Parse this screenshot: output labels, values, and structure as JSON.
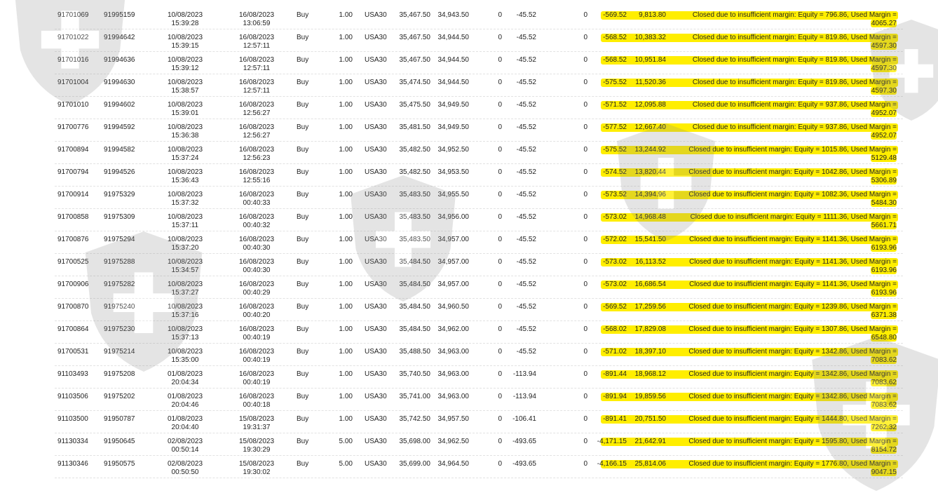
{
  "colors": {
    "highlight": "#ffee00",
    "text": "#222222",
    "watermark": "#9a9a9a"
  },
  "watermark_icon": "shield-cross-icon",
  "comment_prefix": "Closed due to insufficient margin: Equity = ",
  "rows": [
    {
      "ticket": "91701069",
      "order": "91995159",
      "open_date": "10/08/2023",
      "open_time": "15:39:28",
      "close_date": "16/08/2023",
      "close_time": "13:06:59",
      "type": "Buy",
      "lots": "1.00",
      "symbol": "USA30",
      "open_price": "35,467.50",
      "close_price": "34,943.50",
      "swap": "0",
      "commission": "-45.52",
      "taxes": "0",
      "profit": "-569.52",
      "balance": "9,813.80",
      "comment_line1": "Closed due to insufficient margin: Equity = 796.86, Used Margin =",
      "comment_line2": "4065.27"
    },
    {
      "ticket": "91701022",
      "order": "91994642",
      "open_date": "10/08/2023",
      "open_time": "15:39:15",
      "close_date": "16/08/2023",
      "close_time": "12:57:11",
      "type": "Buy",
      "lots": "1.00",
      "symbol": "USA30",
      "open_price": "35,467.50",
      "close_price": "34,944.50",
      "swap": "0",
      "commission": "-45.52",
      "taxes": "0",
      "profit": "-568.52",
      "balance": "10,383.32",
      "comment_line1": "Closed due to insufficient margin: Equity = 819.86, Used Margin =",
      "comment_line2": "4597.30"
    },
    {
      "ticket": "91701016",
      "order": "91994636",
      "open_date": "10/08/2023",
      "open_time": "15:39:12",
      "close_date": "16/08/2023",
      "close_time": "12:57:11",
      "type": "Buy",
      "lots": "1.00",
      "symbol": "USA30",
      "open_price": "35,467.50",
      "close_price": "34,944.50",
      "swap": "0",
      "commission": "-45.52",
      "taxes": "0",
      "profit": "-568.52",
      "balance": "10,951.84",
      "comment_line1": "Closed due to insufficient margin: Equity = 819.86, Used Margin =",
      "comment_line2": "4597.30"
    },
    {
      "ticket": "91701004",
      "order": "91994630",
      "open_date": "10/08/2023",
      "open_time": "15:38:57",
      "close_date": "16/08/2023",
      "close_time": "12:57:11",
      "type": "Buy",
      "lots": "1.00",
      "symbol": "USA30",
      "open_price": "35,474.50",
      "close_price": "34,944.50",
      "swap": "0",
      "commission": "-45.52",
      "taxes": "0",
      "profit": "-575.52",
      "balance": "11,520.36",
      "comment_line1": "Closed due to insufficient margin: Equity = 819.86, Used Margin =",
      "comment_line2": "4597.30"
    },
    {
      "ticket": "91701010",
      "order": "91994602",
      "open_date": "10/08/2023",
      "open_time": "15:39:01",
      "close_date": "16/08/2023",
      "close_time": "12:56:27",
      "type": "Buy",
      "lots": "1.00",
      "symbol": "USA30",
      "open_price": "35,475.50",
      "close_price": "34,949.50",
      "swap": "0",
      "commission": "-45.52",
      "taxes": "0",
      "profit": "-571.52",
      "balance": "12,095.88",
      "comment_line1": "Closed due to insufficient margin: Equity = 937.86, Used Margin =",
      "comment_line2": "4952.07"
    },
    {
      "ticket": "91700776",
      "order": "91994592",
      "open_date": "10/08/2023",
      "open_time": "15:36:38",
      "close_date": "16/08/2023",
      "close_time": "12:56:27",
      "type": "Buy",
      "lots": "1.00",
      "symbol": "USA30",
      "open_price": "35,481.50",
      "close_price": "34,949.50",
      "swap": "0",
      "commission": "-45.52",
      "taxes": "0",
      "profit": "-577.52",
      "balance": "12,667.40",
      "comment_line1": "Closed due to insufficient margin: Equity = 937.86, Used Margin =",
      "comment_line2": "4952.07"
    },
    {
      "ticket": "91700894",
      "order": "91994582",
      "open_date": "10/08/2023",
      "open_time": "15:37:24",
      "close_date": "16/08/2023",
      "close_time": "12:56:23",
      "type": "Buy",
      "lots": "1.00",
      "symbol": "USA30",
      "open_price": "35,482.50",
      "close_price": "34,952.50",
      "swap": "0",
      "commission": "-45.52",
      "taxes": "0",
      "profit": "-575.52",
      "balance": "13,244.92",
      "comment_line1": "Closed due to insufficient margin: Equity = 1015.86, Used Margin =",
      "comment_line2": "5129.48"
    },
    {
      "ticket": "91700794",
      "order": "91994526",
      "open_date": "10/08/2023",
      "open_time": "15:36:43",
      "close_date": "16/08/2023",
      "close_time": "12:55:16",
      "type": "Buy",
      "lots": "1.00",
      "symbol": "USA30",
      "open_price": "35,482.50",
      "close_price": "34,953.50",
      "swap": "0",
      "commission": "-45.52",
      "taxes": "0",
      "profit": "-574.52",
      "balance": "13,820.44",
      "comment_line1": "Closed due to insufficient margin: Equity = 1042.86, Used Margin =",
      "comment_line2": "5306.89"
    },
    {
      "ticket": "91700914",
      "order": "91975329",
      "open_date": "10/08/2023",
      "open_time": "15:37:32",
      "close_date": "16/08/2023",
      "close_time": "00:40:33",
      "type": "Buy",
      "lots": "1.00",
      "symbol": "USA30",
      "open_price": "35,483.50",
      "close_price": "34,955.50",
      "swap": "0",
      "commission": "-45.52",
      "taxes": "0",
      "profit": "-573.52",
      "balance": "14,394.96",
      "comment_line1": "Closed due to insufficient margin: Equity = 1082.36, Used Margin =",
      "comment_line2": "5484.30"
    },
    {
      "ticket": "91700858",
      "order": "91975309",
      "open_date": "10/08/2023",
      "open_time": "15:37:11",
      "close_date": "16/08/2023",
      "close_time": "00:40:32",
      "type": "Buy",
      "lots": "1.00",
      "symbol": "USA30",
      "open_price": "35,483.50",
      "close_price": "34,956.00",
      "swap": "0",
      "commission": "-45.52",
      "taxes": "0",
      "profit": "-573.02",
      "balance": "14,968.48",
      "comment_line1": "Closed due to insufficient margin: Equity = 1111.36, Used Margin =",
      "comment_line2": "5661.71"
    },
    {
      "ticket": "91700876",
      "order": "91975294",
      "open_date": "10/08/2023",
      "open_time": "15:37:20",
      "close_date": "16/08/2023",
      "close_time": "00:40:30",
      "type": "Buy",
      "lots": "1.00",
      "symbol": "USA30",
      "open_price": "35,483.50",
      "close_price": "34,957.00",
      "swap": "0",
      "commission": "-45.52",
      "taxes": "0",
      "profit": "-572.02",
      "balance": "15,541.50",
      "comment_line1": "Closed due to insufficient margin: Equity = 1141.36, Used Margin =",
      "comment_line2": "6193.96"
    },
    {
      "ticket": "91700525",
      "order": "91975288",
      "open_date": "10/08/2023",
      "open_time": "15:34:57",
      "close_date": "16/08/2023",
      "close_time": "00:40:30",
      "type": "Buy",
      "lots": "1.00",
      "symbol": "USA30",
      "open_price": "35,484.50",
      "close_price": "34,957.00",
      "swap": "0",
      "commission": "-45.52",
      "taxes": "0",
      "profit": "-573.02",
      "balance": "16,113.52",
      "comment_line1": "Closed due to insufficient margin: Equity = 1141.36, Used Margin =",
      "comment_line2": "6193.96"
    },
    {
      "ticket": "91700906",
      "order": "91975282",
      "open_date": "10/08/2023",
      "open_time": "15:37:27",
      "close_date": "16/08/2023",
      "close_time": "00:40:29",
      "type": "Buy",
      "lots": "1.00",
      "symbol": "USA30",
      "open_price": "35,484.50",
      "close_price": "34,957.00",
      "swap": "0",
      "commission": "-45.52",
      "taxes": "0",
      "profit": "-573.02",
      "balance": "16,686.54",
      "comment_line1": "Closed due to insufficient margin: Equity = 1141.36, Used Margin =",
      "comment_line2": "6193.96"
    },
    {
      "ticket": "91700870",
      "order": "91975240",
      "open_date": "10/08/2023",
      "open_time": "15:37:16",
      "close_date": "16/08/2023",
      "close_time": "00:40:20",
      "type": "Buy",
      "lots": "1.00",
      "symbol": "USA30",
      "open_price": "35,484.50",
      "close_price": "34,960.50",
      "swap": "0",
      "commission": "-45.52",
      "taxes": "0",
      "profit": "-569.52",
      "balance": "17,259.56",
      "comment_line1": "Closed due to insufficient margin: Equity = 1239.86, Used Margin =",
      "comment_line2": "6371.38"
    },
    {
      "ticket": "91700864",
      "order": "91975230",
      "open_date": "10/08/2023",
      "open_time": "15:37:13",
      "close_date": "16/08/2023",
      "close_time": "00:40:19",
      "type": "Buy",
      "lots": "1.00",
      "symbol": "USA30",
      "open_price": "35,484.50",
      "close_price": "34,962.00",
      "swap": "0",
      "commission": "-45.52",
      "taxes": "0",
      "profit": "-568.02",
      "balance": "17,829.08",
      "comment_line1": "Closed due to insufficient margin: Equity = 1307.86, Used Margin =",
      "comment_line2": "6548.80"
    },
    {
      "ticket": "91700531",
      "order": "91975214",
      "open_date": "10/08/2023",
      "open_time": "15:35:00",
      "close_date": "16/08/2023",
      "close_time": "00:40:19",
      "type": "Buy",
      "lots": "1.00",
      "symbol": "USA30",
      "open_price": "35,488.50",
      "close_price": "34,963.00",
      "swap": "0",
      "commission": "-45.52",
      "taxes": "0",
      "profit": "-571.02",
      "balance": "18,397.10",
      "comment_line1": "Closed due to insufficient margin: Equity = 1342.86, Used Margin =",
      "comment_line2": "7083.62"
    },
    {
      "ticket": "91103493",
      "order": "91975208",
      "open_date": "01/08/2023",
      "open_time": "20:04:34",
      "close_date": "16/08/2023",
      "close_time": "00:40:19",
      "type": "Buy",
      "lots": "1.00",
      "symbol": "USA30",
      "open_price": "35,740.50",
      "close_price": "34,963.00",
      "swap": "0",
      "commission": "-113.94",
      "taxes": "0",
      "profit": "-891.44",
      "balance": "18,968.12",
      "comment_line1": "Closed due to insufficient margin: Equity = 1342.86, Used Margin =",
      "comment_line2": "7083.62"
    },
    {
      "ticket": "91103506",
      "order": "91975202",
      "open_date": "01/08/2023",
      "open_time": "20:04:46",
      "close_date": "16/08/2023",
      "close_time": "00:40:18",
      "type": "Buy",
      "lots": "1.00",
      "symbol": "USA30",
      "open_price": "35,741.00",
      "close_price": "34,963.00",
      "swap": "0",
      "commission": "-113.94",
      "taxes": "0",
      "profit": "-891.94",
      "balance": "19,859.56",
      "comment_line1": "Closed due to insufficient margin: Equity = 1342.86, Used Margin =",
      "comment_line2": "7083.62"
    },
    {
      "ticket": "91103500",
      "order": "91950787",
      "open_date": "01/08/2023",
      "open_time": "20:04:40",
      "close_date": "15/08/2023",
      "close_time": "19:31:37",
      "type": "Buy",
      "lots": "1.00",
      "symbol": "USA30",
      "open_price": "35,742.50",
      "close_price": "34,957.50",
      "swap": "0",
      "commission": "-106.41",
      "taxes": "0",
      "profit": "-891.41",
      "balance": "20,751.50",
      "comment_line1": "Closed due to insufficient margin: Equity = 1444.80, Used Margin =",
      "comment_line2": "7262.32"
    },
    {
      "ticket": "91130334",
      "order": "91950645",
      "open_date": "02/08/2023",
      "open_time": "00:50:14",
      "close_date": "15/08/2023",
      "close_time": "19:30:29",
      "type": "Buy",
      "lots": "5.00",
      "symbol": "USA30",
      "open_price": "35,698.00",
      "close_price": "34,962.50",
      "swap": "0",
      "commission": "-493.65",
      "taxes": "0",
      "profit": "-4,171.15",
      "balance": "21,642.91",
      "comment_line1": "Closed due to insufficient margin: Equity = 1595.80, Used Margin =",
      "comment_line2": "8154.72"
    },
    {
      "ticket": "91130346",
      "order": "91950575",
      "open_date": "02/08/2023",
      "open_time": "00:50:50",
      "close_date": "15/08/2023",
      "close_time": "19:30:02",
      "type": "Buy",
      "lots": "5.00",
      "symbol": "USA30",
      "open_price": "35,699.00",
      "close_price": "34,964.50",
      "swap": "0",
      "commission": "-493.65",
      "taxes": "0",
      "profit": "-4,166.15",
      "balance": "25,814.06",
      "comment_line1": "Closed due to insufficient margin: Equity = 1776.80, Used Margin =",
      "comment_line2": "9047.15"
    }
  ]
}
